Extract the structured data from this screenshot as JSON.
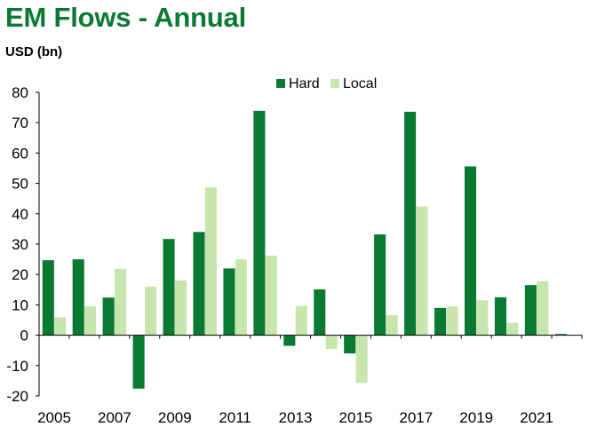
{
  "chart_data": {
    "type": "bar",
    "title": "EM Flows - Annual",
    "ylabel": "USD (bn)",
    "xlabel": "",
    "categories": [
      "2005",
      "2006",
      "2007",
      "2008",
      "2009",
      "2010",
      "2011",
      "2012",
      "2013",
      "2014",
      "2015",
      "2016",
      "2017",
      "2018",
      "2019",
      "2020",
      "2021",
      "2022"
    ],
    "x_tick_labels": [
      "2005",
      "2007",
      "2009",
      "2011",
      "2013",
      "2015",
      "2017",
      "2019",
      "2021"
    ],
    "series": [
      {
        "name": "Hard",
        "color": "#0a7a32",
        "values": [
          24.7,
          25.0,
          12.4,
          -17.6,
          31.7,
          34.0,
          22.0,
          73.9,
          -3.5,
          15.1,
          -6.0,
          33.2,
          73.6,
          9.0,
          55.6,
          12.5,
          16.5,
          0.4
        ]
      },
      {
        "name": "Local",
        "color": "#c6e6ad",
        "values": [
          5.9,
          9.5,
          21.8,
          16.0,
          18.0,
          48.7,
          25.0,
          26.2,
          9.6,
          -4.5,
          -15.7,
          6.6,
          42.4,
          9.5,
          11.5,
          4.1,
          17.8,
          0
        ]
      }
    ],
    "ylim": [
      -20,
      80
    ],
    "yticks": [
      -20,
      -10,
      0,
      10,
      20,
      30,
      40,
      50,
      60,
      70,
      80
    ],
    "grid": false,
    "legend_position": "top-center",
    "title_color": "#0a7a32"
  }
}
